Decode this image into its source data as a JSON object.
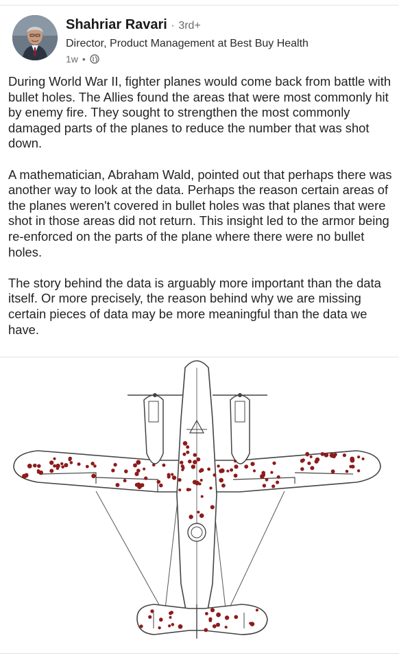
{
  "post": {
    "author": {
      "name": "Shahriar Ravari",
      "degree": "3rd+",
      "separator": "·",
      "headline": "Director, Product Management at Best Buy Health"
    },
    "meta": {
      "age": "1w",
      "dot": "•",
      "visibility_icon": "globe-icon"
    },
    "paragraphs": [
      "During World War II, fighter planes would come back from battle with bullet holes. The Allies found the areas that were most commonly hit by enemy fire. They sought to strengthen the most commonly damaged parts of the planes to reduce the number that was shot down.",
      "A mathematician, Abraham Wald, pointed out that perhaps there was another way to look at the data. Perhaps the reason certain areas of the planes weren't covered in bullet holes was that planes that were shot in those areas did not return. This insight led to the armor being re-enforced on the parts of the plane where there were no bullet holes.",
      "The story behind the data is arguably more important than the data itself. Or more precisely, the reason behind why we are missing certain pieces of data may be more meaningful than the data we have."
    ],
    "image": {
      "icon": "bomber-plane-bullet-hole-diagram"
    }
  },
  "colors": {
    "bullet_hole": "#8e1b1b",
    "outline": "#444444",
    "text": "#232323",
    "muted": "#6b6b6b"
  }
}
